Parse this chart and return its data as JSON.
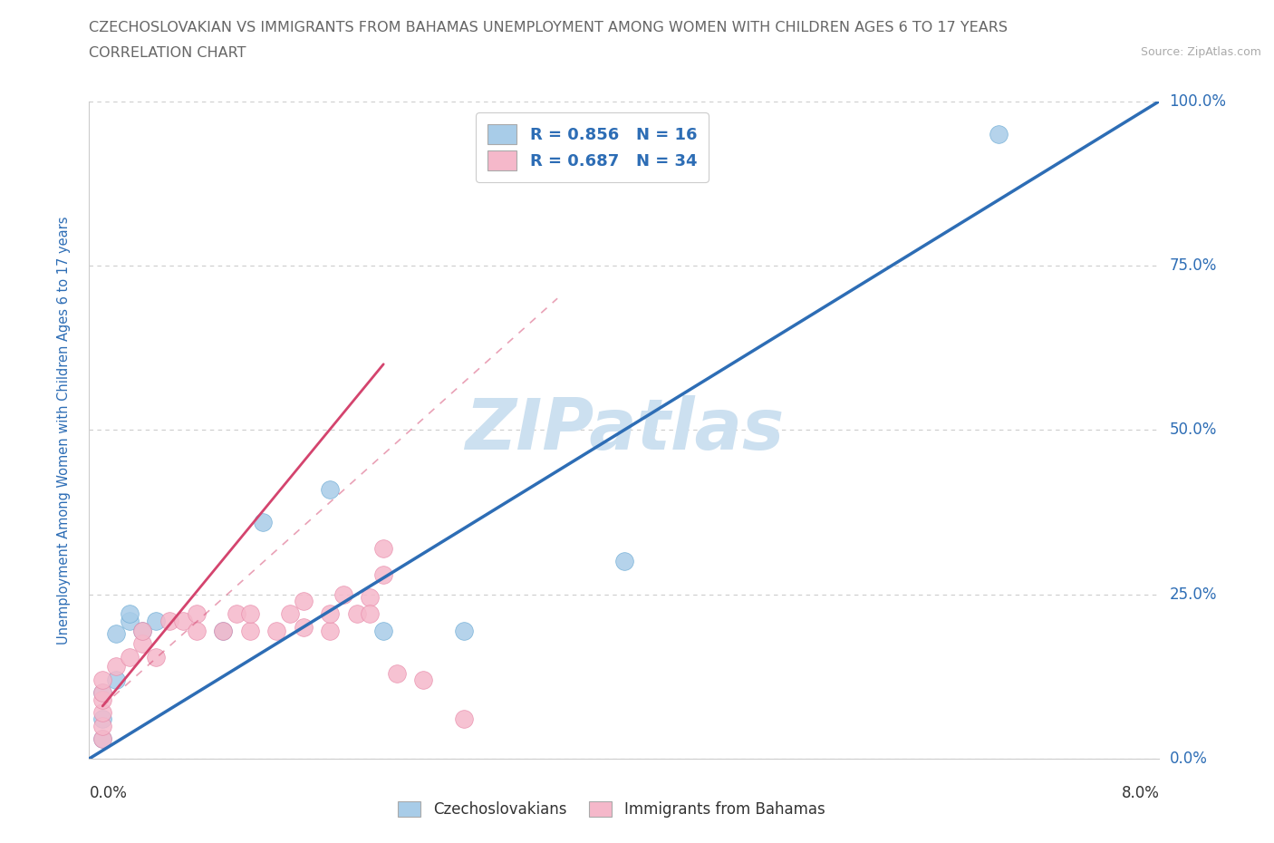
{
  "title_line1": "CZECHOSLOVAKIAN VS IMMIGRANTS FROM BAHAMAS UNEMPLOYMENT AMONG WOMEN WITH CHILDREN AGES 6 TO 17 YEARS",
  "title_line2": "CORRELATION CHART",
  "source": "Source: ZipAtlas.com",
  "ylabel": "Unemployment Among Women with Children Ages 6 to 17 years",
  "xlim": [
    0.0,
    0.08
  ],
  "ylim": [
    0.0,
    1.0
  ],
  "ytick_values": [
    0.0,
    0.25,
    0.5,
    0.75,
    1.0
  ],
  "ytick_labels_right": [
    "0.0%",
    "25.0%",
    "50.0%",
    "75.0%",
    "100.0%"
  ],
  "xtick_label_left": "0.0%",
  "xtick_label_right": "8.0%",
  "czech_color": "#a8cce8",
  "czech_edge_color": "#6aaad4",
  "czech_line_color": "#2d6db5",
  "bahamas_color": "#f5b8ca",
  "bahamas_edge_color": "#e888a8",
  "bahamas_line_color": "#d4446e",
  "legend_R1": "R = 0.856",
  "legend_N1": "N = 16",
  "legend_R2": "R = 0.687",
  "legend_N2": "N = 34",
  "legend_text_color": "#2d6db5",
  "watermark": "ZIPatlas",
  "watermark_color": "#cce0f0",
  "czech_points_x": [
    0.001,
    0.001,
    0.001,
    0.002,
    0.002,
    0.003,
    0.003,
    0.004,
    0.005,
    0.01,
    0.013,
    0.018,
    0.022,
    0.028,
    0.04,
    0.068
  ],
  "czech_points_y": [
    0.03,
    0.06,
    0.1,
    0.12,
    0.19,
    0.21,
    0.22,
    0.195,
    0.21,
    0.195,
    0.36,
    0.41,
    0.195,
    0.195,
    0.3,
    0.95
  ],
  "bahamas_points_x": [
    0.001,
    0.001,
    0.001,
    0.001,
    0.001,
    0.001,
    0.002,
    0.003,
    0.004,
    0.004,
    0.005,
    0.006,
    0.007,
    0.008,
    0.008,
    0.01,
    0.011,
    0.012,
    0.012,
    0.014,
    0.015,
    0.016,
    0.016,
    0.018,
    0.018,
    0.019,
    0.02,
    0.021,
    0.021,
    0.022,
    0.022,
    0.023,
    0.025,
    0.028
  ],
  "bahamas_points_y": [
    0.03,
    0.05,
    0.07,
    0.09,
    0.1,
    0.12,
    0.14,
    0.155,
    0.175,
    0.195,
    0.155,
    0.21,
    0.21,
    0.22,
    0.195,
    0.195,
    0.22,
    0.195,
    0.22,
    0.195,
    0.22,
    0.24,
    0.2,
    0.195,
    0.22,
    0.25,
    0.22,
    0.245,
    0.22,
    0.28,
    0.32,
    0.13,
    0.12,
    0.06
  ],
  "czech_trend_x": [
    0.0,
    0.08
  ],
  "czech_trend_y": [
    0.0,
    1.0
  ],
  "bahamas_trend_x": [
    0.001,
    0.022
  ],
  "bahamas_trend_y": [
    0.08,
    0.6
  ],
  "bahamas_dashed_trend_x": [
    0.001,
    0.035
  ],
  "bahamas_dashed_trend_y": [
    0.08,
    0.7
  ],
  "background_color": "#ffffff",
  "grid_color": "#cccccc",
  "grid_style": "--",
  "title_color": "#666666",
  "axis_label_color": "#2d6db5",
  "right_ytick_color": "#2d6db5",
  "bottom_legend_labels": [
    "Czechoslovakians",
    "Immigrants from Bahamas"
  ]
}
